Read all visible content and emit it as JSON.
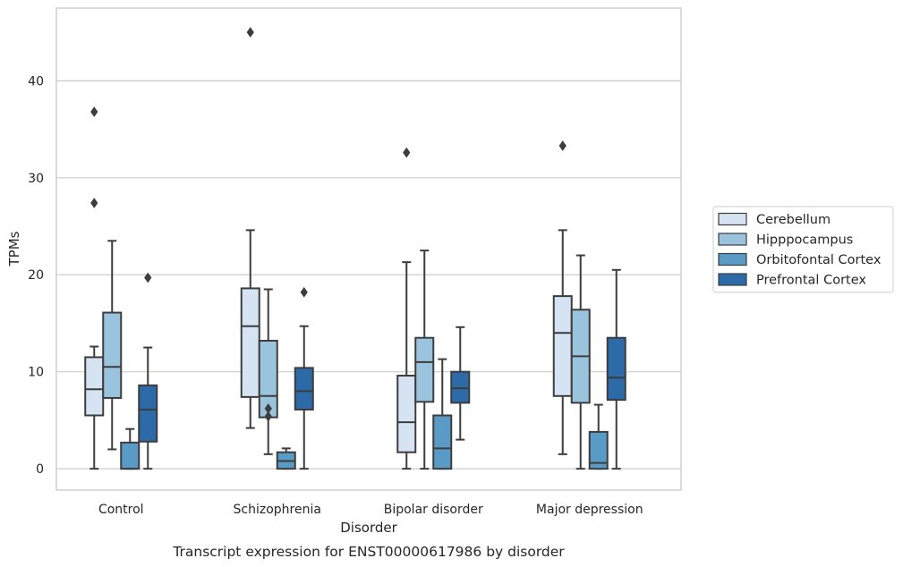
{
  "chart_data": {
    "type": "box",
    "xlabel": "Disorder",
    "ylabel": "TPMs",
    "caption": "Transcript expression for ENST00000617986 by disorder",
    "ylim": [
      -2.2,
      47.5
    ],
    "yticks": [
      0,
      10,
      20,
      30,
      40
    ],
    "grid": true,
    "legend_position": "right",
    "categories": [
      "Control",
      "Schizophrenia",
      "Bipolar disorder",
      "Major depression"
    ],
    "series": [
      {
        "name": "Cerebellum",
        "color": "#d5e3f2",
        "boxes": [
          {
            "whislo": 0,
            "q1": 5.5,
            "med": 8.2,
            "q3": 11.5,
            "whishi": 12.6,
            "fliers": [
              27.4,
              36.8
            ]
          },
          {
            "whislo": 4.2,
            "q1": 7.4,
            "med": 14.7,
            "q3": 18.6,
            "whishi": 24.6,
            "fliers": [
              45.0
            ]
          },
          {
            "whislo": 0,
            "q1": 1.7,
            "med": 4.8,
            "q3": 9.6,
            "whishi": 21.3,
            "fliers": [
              32.6
            ]
          },
          {
            "whislo": 1.5,
            "q1": 7.5,
            "med": 14.0,
            "q3": 17.8,
            "whishi": 24.6,
            "fliers": [
              33.3
            ]
          }
        ]
      },
      {
        "name": "Hipppocampus",
        "color": "#9ac3de",
        "boxes": [
          {
            "whislo": 2.0,
            "q1": 7.3,
            "med": 10.5,
            "q3": 16.1,
            "whishi": 23.5,
            "fliers": []
          },
          {
            "whislo": 1.5,
            "q1": 5.3,
            "med": 7.5,
            "q3": 13.2,
            "whishi": 18.5,
            "fliers": [
              5.4,
              6.2
            ]
          },
          {
            "whislo": 0,
            "q1": 6.9,
            "med": 11.0,
            "q3": 13.5,
            "whishi": 22.5,
            "fliers": []
          },
          {
            "whislo": 0,
            "q1": 6.8,
            "med": 11.6,
            "q3": 16.4,
            "whishi": 22.0,
            "fliers": []
          }
        ]
      },
      {
        "name": "Orbitofontal Cortex",
        "color": "#5a9ac6",
        "boxes": [
          {
            "whislo": 0,
            "q1": 0,
            "med": 0,
            "q3": 2.7,
            "whishi": 4.1,
            "fliers": []
          },
          {
            "whislo": 0,
            "q1": 0,
            "med": 0.8,
            "q3": 1.7,
            "whishi": 2.1,
            "fliers": []
          },
          {
            "whislo": 0,
            "q1": 0,
            "med": 2.1,
            "q3": 5.5,
            "whishi": 11.3,
            "fliers": []
          },
          {
            "whislo": 0,
            "q1": 0,
            "med": 0.6,
            "q3": 3.8,
            "whishi": 6.6,
            "fliers": []
          }
        ]
      },
      {
        "name": "Prefrontal Cortex",
        "color": "#2d6aa8",
        "boxes": [
          {
            "whislo": 0,
            "q1": 2.8,
            "med": 6.1,
            "q3": 8.6,
            "whishi": 12.5,
            "fliers": [
              19.7
            ]
          },
          {
            "whislo": 0,
            "q1": 6.1,
            "med": 8.0,
            "q3": 10.4,
            "whishi": 14.7,
            "fliers": [
              18.2
            ]
          },
          {
            "whislo": 3.0,
            "q1": 6.8,
            "med": 8.3,
            "q3": 10.0,
            "whishi": 14.6,
            "fliers": []
          },
          {
            "whislo": 0,
            "q1": 7.1,
            "med": 9.4,
            "q3": 13.5,
            "whishi": 20.5,
            "fliers": []
          }
        ]
      }
    ]
  }
}
